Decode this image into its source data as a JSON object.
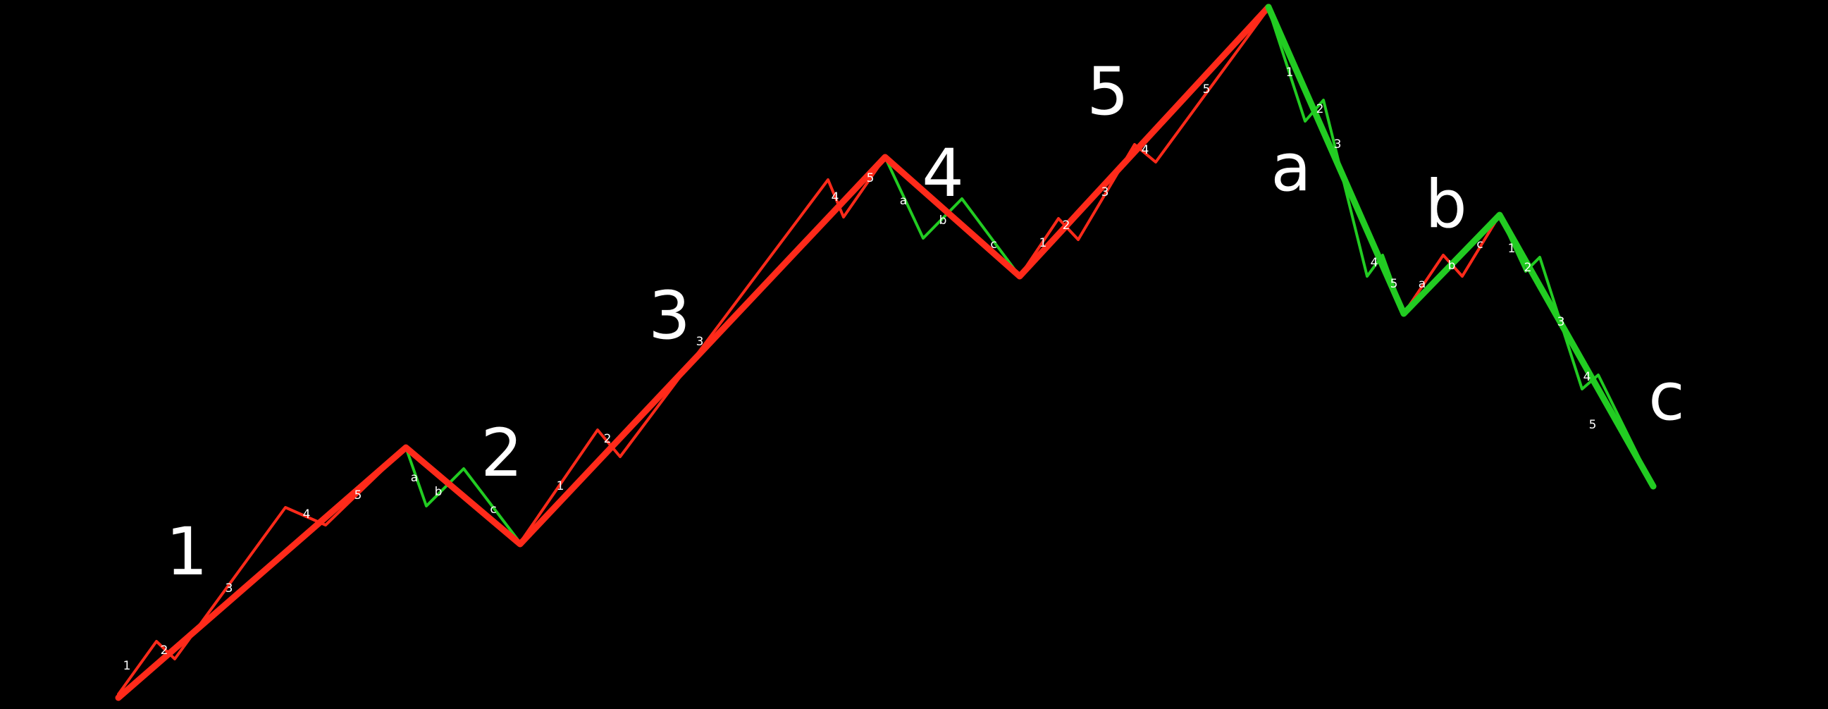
{
  "colors": {
    "background": "#000000",
    "impulse": "#ff2a1a",
    "corrective": "#22cc22",
    "label": "#ffffff"
  },
  "main_labels": [
    "1",
    "2",
    "3",
    "4",
    "5",
    "a",
    "b",
    "c"
  ],
  "sub_labels": {
    "wave1": [
      "1",
      "2",
      "3",
      "4",
      "5"
    ],
    "wave2": [
      "a",
      "b",
      "c"
    ],
    "wave3": [
      "1",
      "2",
      "3",
      "4",
      "5"
    ],
    "wave4": [
      "a",
      "b",
      "c"
    ],
    "wave5": [
      "1",
      "2",
      "3",
      "4",
      "5"
    ],
    "wave_a": [
      "1",
      "2",
      "3",
      "4",
      "5"
    ],
    "wave_b": [
      "a",
      "b",
      "c"
    ],
    "wave_c": [
      "1",
      "2",
      "3",
      "4",
      "5"
    ]
  }
}
